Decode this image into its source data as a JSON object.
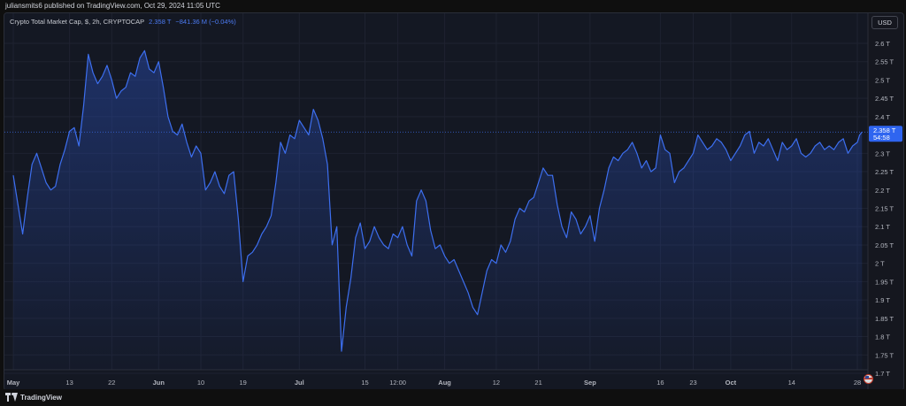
{
  "header": {
    "publisher": "juliansmits6 published on TradingView.com, Oct 29, 2024 11:05 UTC"
  },
  "legend": {
    "name": "Crypto Total Market Cap, $, 2h, CRYPTOCAP",
    "value": "2.358 T",
    "change": "−841.36 M (−0.04%)"
  },
  "currency_button": "USD",
  "price_badge": {
    "value": "2.358 T",
    "countdown": "54:58"
  },
  "footer": {
    "logo_text": "TradingView"
  },
  "colors": {
    "line": "#3d6ff0",
    "badge": "#2f65f0",
    "grid": "#1e2230",
    "axis_text": "#b2b5be"
  },
  "chart_data": {
    "type": "area",
    "title": "",
    "xlabel": "",
    "ylabel": "",
    "ylim": [
      1.7,
      2.62
    ],
    "y_ticks": [
      {
        "label": "2.6 T",
        "value": 2.6
      },
      {
        "label": "2.55 T",
        "value": 2.55
      },
      {
        "label": "2.5 T",
        "value": 2.5
      },
      {
        "label": "2.45 T",
        "value": 2.45
      },
      {
        "label": "2.4 T",
        "value": 2.4
      },
      {
        "label": "2.3 T",
        "value": 2.3
      },
      {
        "label": "2.25 T",
        "value": 2.25
      },
      {
        "label": "2.2 T",
        "value": 2.2
      },
      {
        "label": "2.15 T",
        "value": 2.15
      },
      {
        "label": "2.1 T",
        "value": 2.1
      },
      {
        "label": "2.05 T",
        "value": 2.05
      },
      {
        "label": "2 T",
        "value": 2.0
      },
      {
        "label": "1.95 T",
        "value": 1.95
      },
      {
        "label": "1.9 T",
        "value": 1.9
      },
      {
        "label": "1.85 T",
        "value": 1.85
      },
      {
        "label": "1.8 T",
        "value": 1.8
      },
      {
        "label": "1.75 T",
        "value": 1.75
      },
      {
        "label": "1.7 T",
        "value": 1.7
      }
    ],
    "x_ticks": [
      {
        "label": "May",
        "day": 0,
        "bold": true
      },
      {
        "label": "13",
        "day": 12,
        "bold": false
      },
      {
        "label": "22",
        "day": 21,
        "bold": false
      },
      {
        "label": "Jun",
        "day": 31,
        "bold": true
      },
      {
        "label": "10",
        "day": 40,
        "bold": false
      },
      {
        "label": "19",
        "day": 49,
        "bold": false
      },
      {
        "label": "Jul",
        "day": 61,
        "bold": true
      },
      {
        "label": "15",
        "day": 75,
        "bold": false
      },
      {
        "label": "12:00",
        "day": 82,
        "bold": false
      },
      {
        "label": "Aug",
        "day": 92,
        "bold": true
      },
      {
        "label": "12",
        "day": 103,
        "bold": false
      },
      {
        "label": "21",
        "day": 112,
        "bold": false
      },
      {
        "label": "Sep",
        "day": 123,
        "bold": true
      },
      {
        "label": "16",
        "day": 138,
        "bold": false
      },
      {
        "label": "23",
        "day": 145,
        "bold": false
      },
      {
        "label": "Oct",
        "day": 153,
        "bold": true
      },
      {
        "label": "14",
        "day": 166,
        "bold": false
      },
      {
        "label": "28",
        "day": 180,
        "bold": false
      }
    ],
    "last_value": 2.358,
    "series": [
      {
        "x": [
          0,
          1,
          2,
          3,
          4,
          5,
          6,
          7,
          8,
          9,
          10,
          11,
          12,
          13,
          14,
          15,
          16,
          17,
          18,
          19,
          20,
          21,
          22,
          23,
          24,
          25,
          26,
          27,
          28,
          29,
          30,
          31,
          32,
          33,
          34,
          35,
          36,
          37,
          38,
          39,
          40,
          41,
          42,
          43,
          44,
          45,
          46,
          47,
          48,
          49,
          50,
          51,
          52,
          53,
          54,
          55,
          56,
          57,
          58,
          59,
          60,
          61,
          62,
          63,
          64,
          65,
          66,
          67,
          68,
          69,
          70,
          71,
          72,
          73,
          74,
          75,
          76,
          77,
          78,
          79,
          80,
          81,
          82,
          83,
          84,
          85,
          86,
          87,
          88,
          89,
          90,
          91,
          92,
          93,
          94,
          95,
          96,
          97,
          98,
          99,
          100,
          101,
          102,
          103,
          104,
          105,
          106,
          107,
          108,
          109,
          110,
          111,
          112,
          113,
          114,
          115,
          116,
          117,
          118,
          119,
          120,
          121,
          122,
          123,
          124,
          125,
          126,
          127,
          128,
          129,
          130,
          131,
          132,
          133,
          134,
          135,
          136,
          137,
          138,
          139,
          140,
          141,
          142,
          143,
          144,
          145,
          146,
          147,
          148,
          149,
          150,
          151,
          152,
          153,
          154,
          155,
          156,
          157,
          158,
          159,
          160,
          161,
          162,
          163,
          164,
          165,
          166,
          167,
          168,
          169,
          170,
          171,
          172,
          173,
          174,
          175,
          176,
          177,
          178,
          179,
          180,
          180.5,
          181
        ],
        "values": [
          2.24,
          2.16,
          2.08,
          2.18,
          2.27,
          2.3,
          2.26,
          2.22,
          2.2,
          2.21,
          2.27,
          2.31,
          2.36,
          2.37,
          2.32,
          2.43,
          2.57,
          2.52,
          2.49,
          2.51,
          2.54,
          2.5,
          2.45,
          2.47,
          2.48,
          2.52,
          2.51,
          2.56,
          2.58,
          2.53,
          2.52,
          2.55,
          2.48,
          2.4,
          2.36,
          2.35,
          2.38,
          2.33,
          2.29,
          2.32,
          2.3,
          2.2,
          2.22,
          2.25,
          2.21,
          2.19,
          2.24,
          2.25,
          2.12,
          1.95,
          2.02,
          2.03,
          2.05,
          2.08,
          2.1,
          2.13,
          2.22,
          2.33,
          2.3,
          2.35,
          2.34,
          2.39,
          2.37,
          2.35,
          2.42,
          2.39,
          2.34,
          2.27,
          2.05,
          2.1,
          1.76,
          1.88,
          1.96,
          2.07,
          2.11,
          2.04,
          2.06,
          2.1,
          2.07,
          2.05,
          2.04,
          2.08,
          2.07,
          2.1,
          2.05,
          2.02,
          2.17,
          2.2,
          2.17,
          2.09,
          2.04,
          2.05,
          2.02,
          2.0,
          2.01,
          1.98,
          1.95,
          1.92,
          1.88,
          1.86,
          1.92,
          1.98,
          2.01,
          2.0,
          2.05,
          2.03,
          2.06,
          2.12,
          2.15,
          2.14,
          2.17,
          2.18,
          2.22,
          2.26,
          2.24,
          2.24,
          2.16,
          2.1,
          2.07,
          2.14,
          2.12,
          2.08,
          2.1,
          2.13,
          2.06,
          2.15,
          2.2,
          2.26,
          2.29,
          2.28,
          2.3,
          2.31,
          2.33,
          2.3,
          2.26,
          2.28,
          2.25,
          2.26,
          2.35,
          2.31,
          2.3,
          2.22,
          2.25,
          2.26,
          2.28,
          2.3,
          2.35,
          2.33,
          2.31,
          2.32,
          2.34,
          2.33,
          2.31,
          2.28,
          2.3,
          2.32,
          2.35,
          2.36,
          2.3,
          2.33,
          2.32,
          2.34,
          2.31,
          2.28,
          2.33,
          2.31,
          2.32,
          2.34,
          2.3,
          2.29,
          2.3,
          2.32,
          2.33,
          2.31,
          2.32,
          2.31,
          2.33,
          2.34,
          2.3,
          2.32,
          2.33,
          2.35,
          2.358
        ]
      }
    ]
  }
}
